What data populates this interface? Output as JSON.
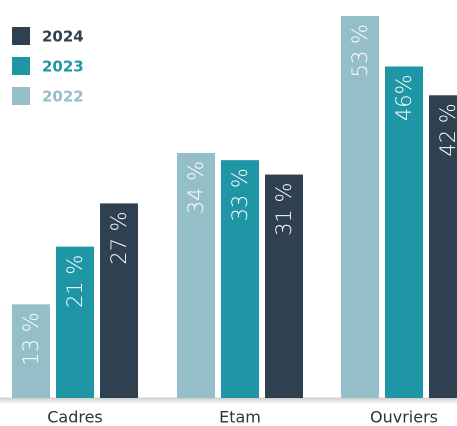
{
  "chart_data": {
    "type": "bar",
    "categories": [
      "Cadres",
      "Etam",
      "Ouvriers"
    ],
    "series": [
      {
        "name": "2022",
        "color": "#94bfc8",
        "values": [
          13,
          34,
          53
        ],
        "value_labels": [
          "13 %",
          "34 %",
          "53 %"
        ]
      },
      {
        "name": "2023",
        "color": "#1f96a6",
        "values": [
          21,
          33,
          46
        ],
        "value_labels": [
          "21 %",
          "33 %",
          "46%"
        ]
      },
      {
        "name": "2024",
        "color": "#2f4150",
        "values": [
          27,
          31,
          42
        ],
        "value_labels": [
          "27 %",
          "31 %",
          "42 %"
        ]
      }
    ]
  }
}
